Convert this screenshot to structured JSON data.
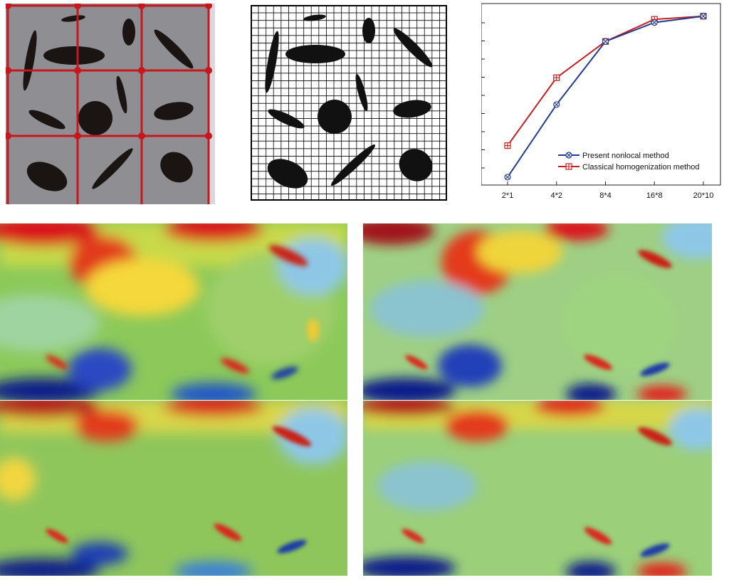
{
  "figure": {
    "panels": [
      {
        "id": "grid-model",
        "description": ""
      },
      {
        "id": "fine-mesh",
        "description": ""
      },
      {
        "id": "convergence-chart",
        "description": ""
      },
      {
        "id": "field-1"
      },
      {
        "id": "field-2"
      },
      {
        "id": "field-3"
      },
      {
        "id": "field-4"
      }
    ],
    "colors": {
      "matrix": "#8f8f93",
      "inclusion": "#1a1512",
      "grid_line": "#c8161d",
      "mesh_line": "#000000",
      "series_blue": "#1f3c8f",
      "series_red": "#c41e1e"
    }
  },
  "chart_data": {
    "type": "line",
    "categories": [
      "2*1",
      "4*2",
      "8*4",
      "16*8",
      "20*10"
    ],
    "series": [
      {
        "name": "Present nonlocal method",
        "values": [
          0.0,
          0.46,
          0.86,
          0.98,
          1.02
        ]
      },
      {
        "name": "Classical homogenization method",
        "values": [
          0.2,
          0.63,
          0.86,
          1.0,
          1.02
        ]
      }
    ],
    "ylim": [
      -0.05,
      1.1
    ],
    "legend_position": "lower-right",
    "title": "",
    "xlabel": "",
    "ylabel": ""
  }
}
